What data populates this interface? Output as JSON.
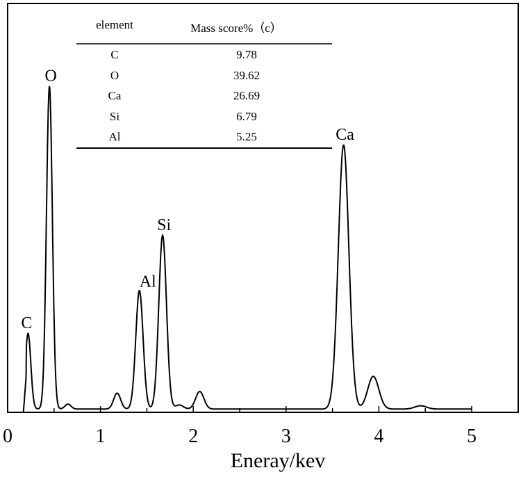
{
  "chart_data": {
    "type": "line",
    "title": "",
    "xlabel": "Eneray/kev",
    "ylabel": "",
    "xlim": [
      0,
      5.5
    ],
    "ylim": [
      0,
      100
    ],
    "xticks": [
      "0",
      "1",
      "2",
      "3",
      "4",
      "5"
    ],
    "grid": false,
    "line_color": "#000000",
    "baseline_intensity": 0.8,
    "peaks": [
      {
        "energy": 0.22,
        "intensity": 18.5,
        "label": "C"
      },
      {
        "energy": 0.45,
        "intensity": 79,
        "label": "O"
      },
      {
        "energy": 0.65,
        "intensity": 1.2,
        "label": ""
      },
      {
        "energy": 1.18,
        "intensity": 3.9,
        "label": ""
      },
      {
        "energy": 1.42,
        "intensity": 29,
        "label": "Al"
      },
      {
        "energy": 1.67,
        "intensity": 42.5,
        "label": "Si"
      },
      {
        "energy": 1.85,
        "intensity": 1.0,
        "label": ""
      },
      {
        "energy": 2.07,
        "intensity": 4.3,
        "label": ""
      },
      {
        "energy": 3.62,
        "intensity": 64.6,
        "label": "Ca"
      },
      {
        "energy": 3.94,
        "intensity": 8,
        "label": ""
      },
      {
        "energy": 4.45,
        "intensity": 0.8,
        "label": ""
      }
    ],
    "table": {
      "headers": [
        "element",
        "Mass score%（c）"
      ],
      "rows": [
        [
          "C",
          "9.78"
        ],
        [
          "O",
          "39.62"
        ],
        [
          "Ca",
          "26.69"
        ],
        [
          "Si",
          "6.79"
        ],
        [
          "Al",
          "5.25"
        ]
      ]
    }
  }
}
